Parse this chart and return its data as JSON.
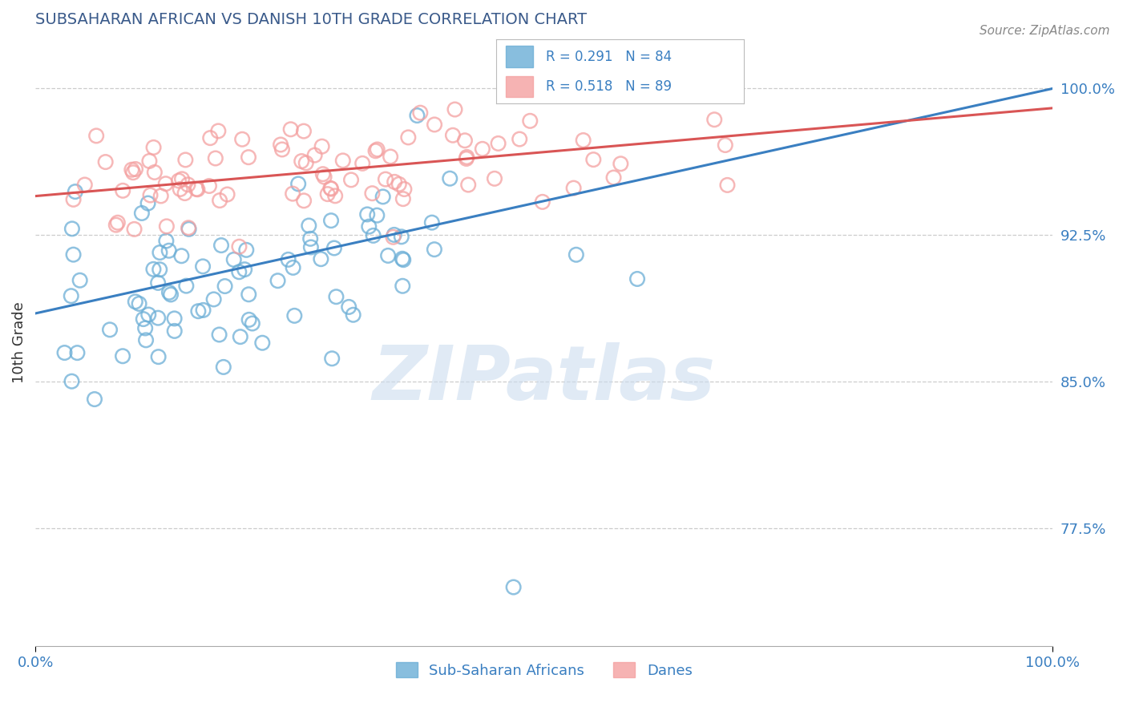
{
  "title": "SUBSAHARAN AFRICAN VS DANISH 10TH GRADE CORRELATION CHART",
  "source_text": "Source: ZipAtlas.com",
  "ylabel": "10th Grade",
  "xmin": 0.0,
  "xmax": 1.0,
  "ymin": 0.715,
  "ymax": 1.025,
  "blue_color": "#6baed6",
  "blue_edge_color": "#5a9ec6",
  "pink_color": "#f4a0a0",
  "pink_edge_color": "#e07070",
  "blue_line_color": "#3a7fc1",
  "pink_line_color": "#d95555",
  "legend_label_blue": "Sub-Saharan Africans",
  "legend_label_pink": "Danes",
  "blue_R": 0.291,
  "blue_N": 84,
  "pink_R": 0.518,
  "pink_N": 89,
  "blue_slope": 0.115,
  "blue_intercept": 0.885,
  "pink_slope": 0.045,
  "pink_intercept": 0.945,
  "watermark": "ZIPatlas",
  "title_color": "#3a5a8a",
  "axis_label_color": "#333333",
  "tick_color": "#3a7fc1",
  "grid_color": "#cccccc",
  "background_color": "#ffffff"
}
